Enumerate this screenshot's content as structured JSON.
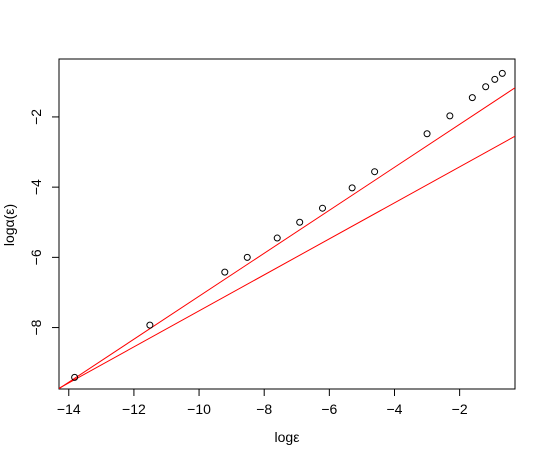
{
  "chart_data": {
    "type": "scatter",
    "title": "",
    "xlabel": "logε",
    "ylabel": "logα(ε)",
    "xlim": [
      -14.3,
      -0.3
    ],
    "ylim": [
      -9.75,
      -0.35
    ],
    "x_ticks": [
      -14,
      -12,
      -10,
      -8,
      -6,
      -4,
      -2
    ],
    "x_tick_labels": [
      "−14",
      "−12",
      "−10",
      "−8",
      "−6",
      "−4",
      "−2"
    ],
    "y_ticks": [
      -8,
      -6,
      -4,
      -2
    ],
    "y_tick_labels": [
      "−8",
      "−6",
      "−4",
      "−2"
    ],
    "grid": false,
    "series": [
      {
        "marker": "open-circle",
        "color": "#000000",
        "points": [
          [
            -13.82,
            -9.42
          ],
          [
            -11.51,
            -7.93
          ],
          [
            -9.21,
            -6.42
          ],
          [
            -8.52,
            -6.0
          ],
          [
            -7.6,
            -5.45
          ],
          [
            -6.91,
            -5.0
          ],
          [
            -6.21,
            -4.6
          ],
          [
            -5.3,
            -4.02
          ],
          [
            -4.61,
            -3.56
          ],
          [
            -3.0,
            -2.48
          ],
          [
            -2.3,
            -1.97
          ],
          [
            -1.61,
            -1.45
          ],
          [
            -1.2,
            -1.14
          ],
          [
            -0.92,
            -0.93
          ],
          [
            -0.69,
            -0.76
          ]
        ]
      }
    ],
    "lines": [
      {
        "color": "#ff0000",
        "from": [
          -14.3,
          -9.74
        ],
        "to": [
          -0.3,
          -1.17
        ]
      },
      {
        "color": "#ff0000",
        "from": [
          -14.3,
          -9.73
        ],
        "to": [
          -0.3,
          -2.55
        ]
      }
    ]
  }
}
